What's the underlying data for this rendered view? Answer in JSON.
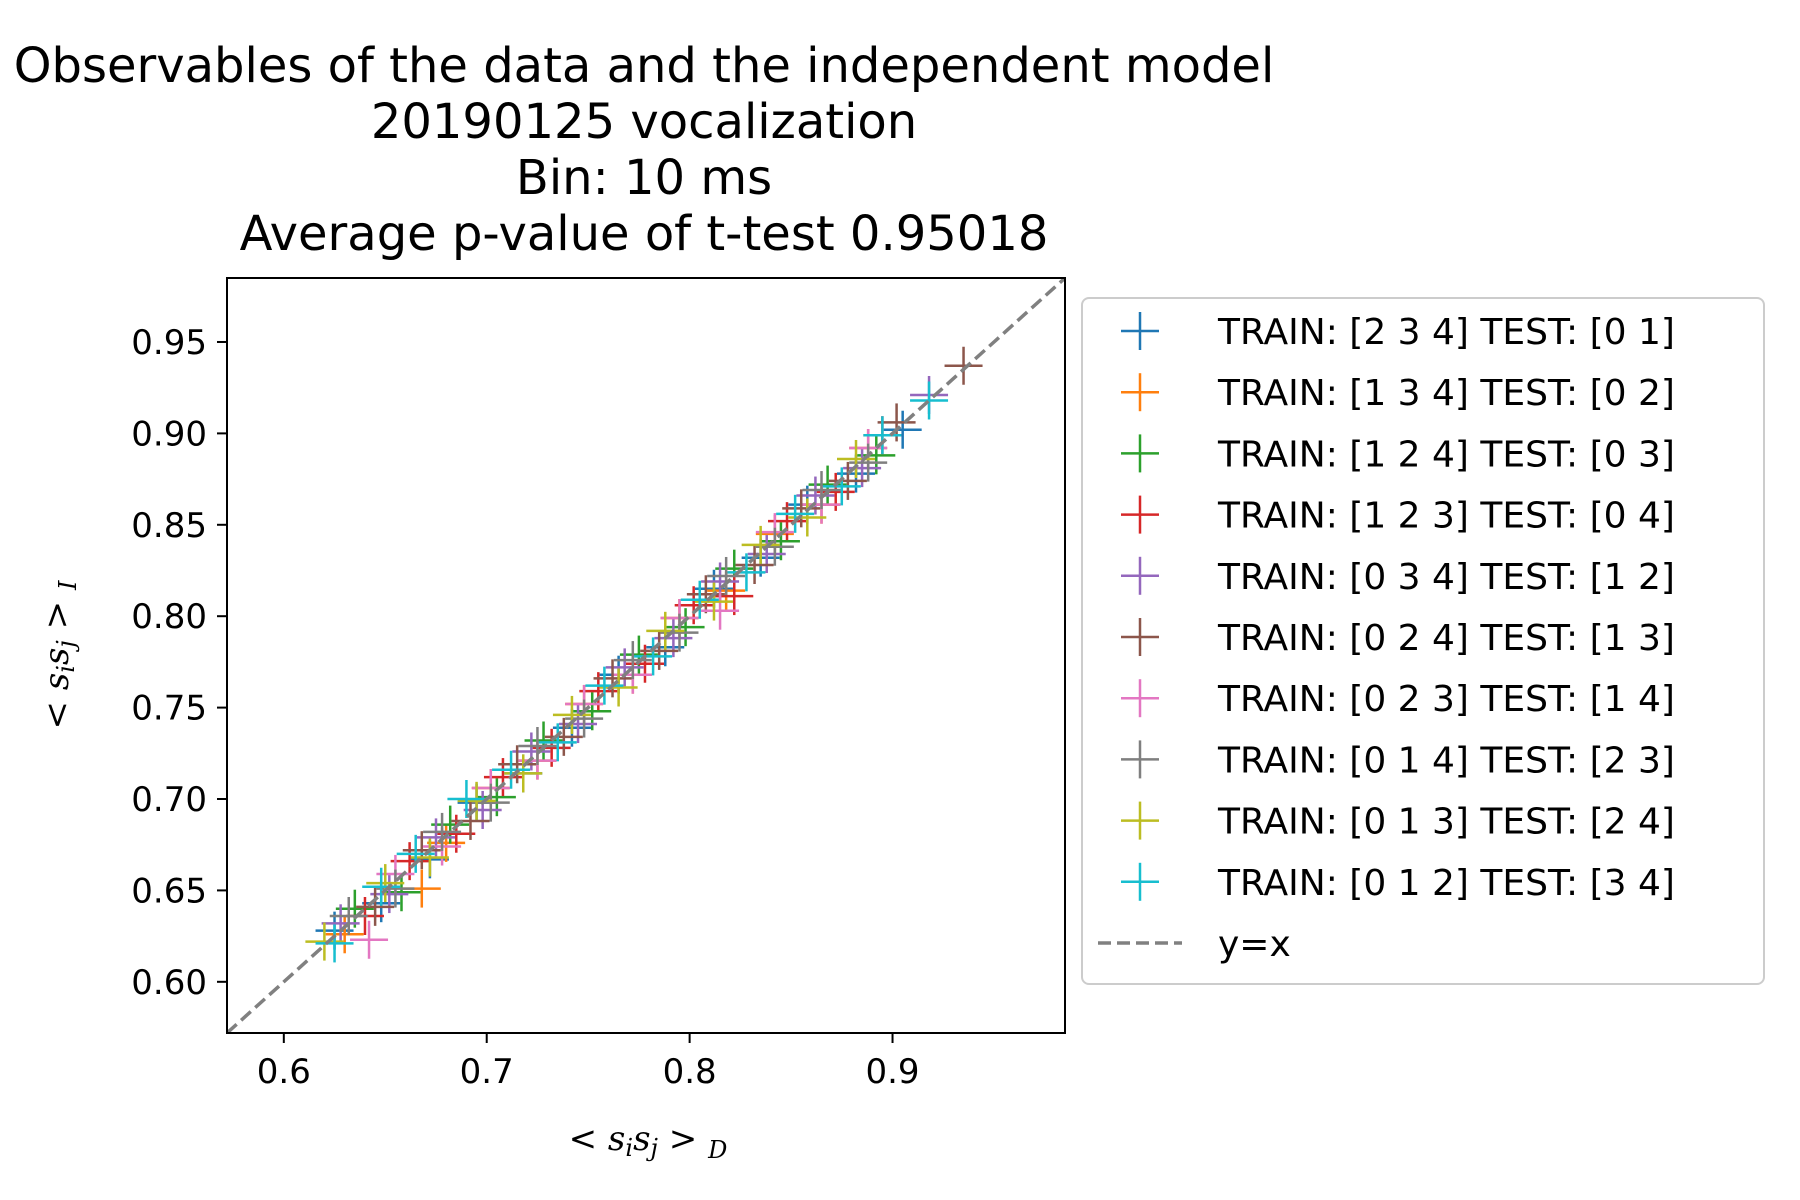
{
  "chart_data": {
    "type": "scatter",
    "title_lines": [
      "Observables of the data and the independent model",
      "20190125 vocalization",
      "Bin: 10 ms",
      "Average p-value of t-test 0.95018"
    ],
    "xlabel": "< s_i s_j >_D",
    "ylabel": "< s_i s_j >_I",
    "xlim": [
      0.572,
      0.985
    ],
    "ylim": [
      0.572,
      0.985
    ],
    "xticks": [
      {
        "value": 0.6,
        "label": "0.6"
      },
      {
        "value": 0.7,
        "label": "0.7"
      },
      {
        "value": 0.8,
        "label": "0.8"
      },
      {
        "value": 0.9,
        "label": "0.9"
      }
    ],
    "yticks": [
      {
        "value": 0.6,
        "label": "0.60"
      },
      {
        "value": 0.65,
        "label": "0.65"
      },
      {
        "value": 0.7,
        "label": "0.70"
      },
      {
        "value": 0.75,
        "label": "0.75"
      },
      {
        "value": 0.8,
        "label": "0.80"
      },
      {
        "value": 0.85,
        "label": "0.85"
      },
      {
        "value": 0.9,
        "label": "0.90"
      },
      {
        "value": 0.95,
        "label": "0.95"
      }
    ],
    "grid": false,
    "legend_position": "outside-right",
    "marker": "plus",
    "series": [
      {
        "name": "TRAIN: [2 3 4] TEST: [0 1]",
        "color": "#1f77b4",
        "points": [
          [
            0.625,
            0.628
          ],
          [
            0.648,
            0.643
          ],
          [
            0.672,
            0.667
          ],
          [
            0.695,
            0.698
          ],
          [
            0.718,
            0.714
          ],
          [
            0.742,
            0.739
          ],
          [
            0.765,
            0.768
          ],
          [
            0.788,
            0.783
          ],
          [
            0.812,
            0.815
          ],
          [
            0.835,
            0.832
          ],
          [
            0.858,
            0.861
          ],
          [
            0.882,
            0.878
          ],
          [
            0.905,
            0.902
          ]
        ]
      },
      {
        "name": "TRAIN: [1 3 4] TEST: [0 2]",
        "color": "#ff7f0e",
        "points": [
          [
            0.63,
            0.626
          ],
          [
            0.668,
            0.651
          ],
          [
            0.68,
            0.676
          ],
          [
            0.702,
            0.706
          ],
          [
            0.725,
            0.721
          ],
          [
            0.748,
            0.752
          ],
          [
            0.772,
            0.768
          ],
          [
            0.795,
            0.799
          ],
          [
            0.818,
            0.814
          ],
          [
            0.842,
            0.845
          ],
          [
            0.865,
            0.861
          ],
          [
            0.888,
            0.892
          ]
        ]
      },
      {
        "name": "TRAIN: [1 2 4] TEST: [0 3]",
        "color": "#2ca02c",
        "points": [
          [
            0.635,
            0.64
          ],
          [
            0.658,
            0.649
          ],
          [
            0.682,
            0.686
          ],
          [
            0.705,
            0.701
          ],
          [
            0.728,
            0.732
          ],
          [
            0.752,
            0.748
          ],
          [
            0.775,
            0.779
          ],
          [
            0.798,
            0.794
          ],
          [
            0.822,
            0.826
          ],
          [
            0.845,
            0.841
          ],
          [
            0.868,
            0.872
          ],
          [
            0.892,
            0.888
          ]
        ]
      },
      {
        "name": "TRAIN: [1 2 3] TEST: [0 4]",
        "color": "#d62728",
        "points": [
          [
            0.64,
            0.636
          ],
          [
            0.662,
            0.666
          ],
          [
            0.685,
            0.681
          ],
          [
            0.708,
            0.712
          ],
          [
            0.732,
            0.728
          ],
          [
            0.755,
            0.759
          ],
          [
            0.778,
            0.774
          ],
          [
            0.802,
            0.806
          ],
          [
            0.822,
            0.811
          ],
          [
            0.848,
            0.852
          ],
          [
            0.872,
            0.868
          ],
          [
            0.895,
            0.899
          ]
        ]
      },
      {
        "name": "TRAIN: [0 3 4] TEST: [1 2]",
        "color": "#9467bd",
        "points": [
          [
            0.628,
            0.632
          ],
          [
            0.652,
            0.648
          ],
          [
            0.675,
            0.679
          ],
          [
            0.698,
            0.694
          ],
          [
            0.722,
            0.726
          ],
          [
            0.745,
            0.741
          ],
          [
            0.768,
            0.772
          ],
          [
            0.792,
            0.788
          ],
          [
            0.815,
            0.819
          ],
          [
            0.838,
            0.834
          ],
          [
            0.862,
            0.866
          ],
          [
            0.885,
            0.881
          ],
          [
            0.918,
            0.921
          ]
        ]
      },
      {
        "name": "TRAIN: [0 2 4] TEST: [1 3]",
        "color": "#8c564b",
        "points": [
          [
            0.645,
            0.641
          ],
          [
            0.668,
            0.672
          ],
          [
            0.692,
            0.688
          ],
          [
            0.715,
            0.719
          ],
          [
            0.738,
            0.734
          ],
          [
            0.762,
            0.766
          ],
          [
            0.785,
            0.781
          ],
          [
            0.808,
            0.812
          ],
          [
            0.832,
            0.828
          ],
          [
            0.855,
            0.859
          ],
          [
            0.878,
            0.874
          ],
          [
            0.902,
            0.906
          ],
          [
            0.935,
            0.937
          ]
        ]
      },
      {
        "name": "TRAIN: [0 2 3] TEST: [1 4]",
        "color": "#e377c2",
        "points": [
          [
            0.642,
            0.623
          ],
          [
            0.655,
            0.659
          ],
          [
            0.678,
            0.674
          ],
          [
            0.702,
            0.706
          ],
          [
            0.725,
            0.721
          ],
          [
            0.748,
            0.752
          ],
          [
            0.772,
            0.768
          ],
          [
            0.795,
            0.799
          ],
          [
            0.815,
            0.803
          ],
          [
            0.842,
            0.846
          ],
          [
            0.865,
            0.861
          ],
          [
            0.888,
            0.892
          ]
        ]
      },
      {
        "name": "TRAIN: [0 1 4] TEST: [2 3]",
        "color": "#7f7f7f",
        "points": [
          [
            0.632,
            0.636
          ],
          [
            0.655,
            0.651
          ],
          [
            0.678,
            0.682
          ],
          [
            0.702,
            0.698
          ],
          [
            0.725,
            0.729
          ],
          [
            0.748,
            0.744
          ],
          [
            0.772,
            0.776
          ],
          [
            0.795,
            0.791
          ],
          [
            0.818,
            0.822
          ],
          [
            0.842,
            0.838
          ],
          [
            0.865,
            0.869
          ],
          [
            0.888,
            0.884
          ]
        ]
      },
      {
        "name": "TRAIN: [0 1 3] TEST: [2 4]",
        "color": "#bcbd22",
        "points": [
          [
            0.62,
            0.622
          ],
          [
            0.65,
            0.654
          ],
          [
            0.672,
            0.668
          ],
          [
            0.695,
            0.699
          ],
          [
            0.718,
            0.714
          ],
          [
            0.742,
            0.746
          ],
          [
            0.765,
            0.761
          ],
          [
            0.788,
            0.792
          ],
          [
            0.812,
            0.808
          ],
          [
            0.835,
            0.839
          ],
          [
            0.858,
            0.854
          ],
          [
            0.882,
            0.886
          ]
        ]
      },
      {
        "name": "TRAIN: [0 1 2] TEST: [3 4]",
        "color": "#17becf",
        "points": [
          [
            0.625,
            0.621
          ],
          [
            0.648,
            0.652
          ],
          [
            0.665,
            0.67
          ],
          [
            0.69,
            0.7
          ],
          [
            0.712,
            0.716
          ],
          [
            0.735,
            0.731
          ],
          [
            0.758,
            0.762
          ],
          [
            0.782,
            0.778
          ],
          [
            0.805,
            0.809
          ],
          [
            0.828,
            0.824
          ],
          [
            0.852,
            0.856
          ],
          [
            0.875,
            0.871
          ],
          [
            0.895,
            0.899
          ],
          [
            0.918,
            0.918
          ]
        ]
      }
    ],
    "reference_line": {
      "name": "y=x",
      "color": "#808080",
      "style": "dashed"
    }
  }
}
